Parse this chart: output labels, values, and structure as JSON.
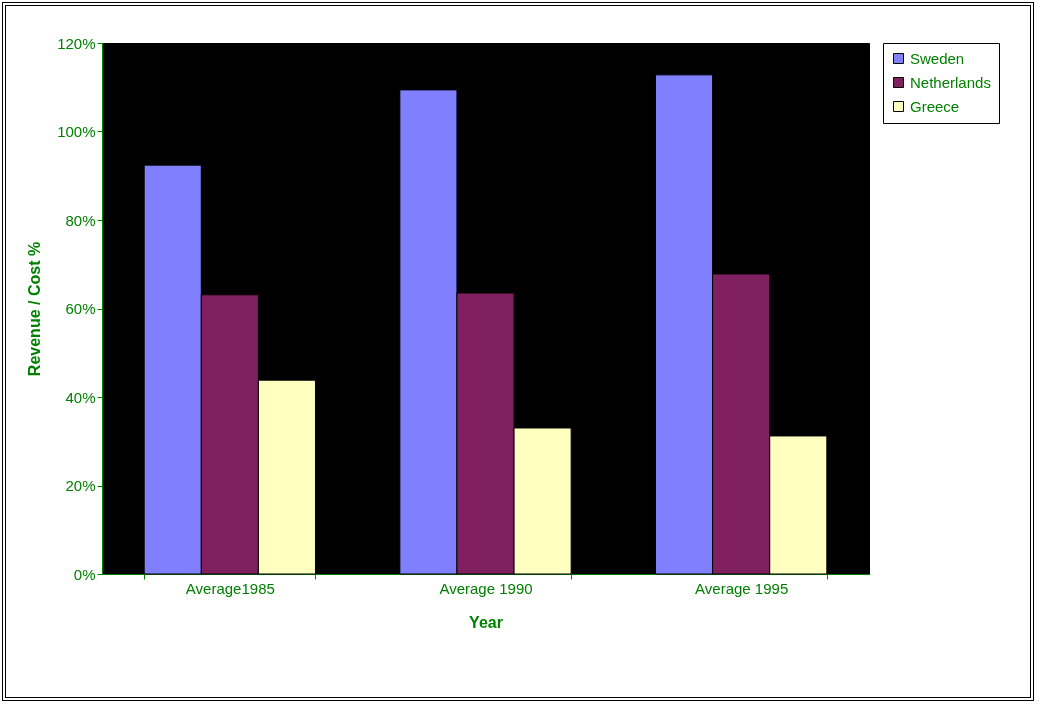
{
  "chart_data": {
    "type": "bar",
    "xlabel": "Year",
    "ylabel": "Revenue / Cost %",
    "categories": [
      "Average1985",
      "Average 1990",
      "Average 1995"
    ],
    "series": [
      {
        "name": "Sweden",
        "color": "#8080ff",
        "values": [
          92.4,
          109.4,
          112.8
        ]
      },
      {
        "name": "Netherlands",
        "color": "#802060",
        "values": [
          63.1,
          63.5,
          67.8
        ]
      },
      {
        "name": "Greece",
        "color": "#ffffc0",
        "values": [
          43.8,
          33.0,
          31.2
        ]
      }
    ],
    "ylim": [
      0,
      120
    ],
    "yticks": [
      {
        "value": 0,
        "label": "0%"
      },
      {
        "value": 20,
        "label": "20%"
      },
      {
        "value": 40,
        "label": "40%"
      },
      {
        "value": 60,
        "label": "60%"
      },
      {
        "value": 80,
        "label": "80%"
      },
      {
        "value": 100,
        "label": "100%"
      },
      {
        "value": 120,
        "label": "120%"
      }
    ],
    "grid": false,
    "legend": "right"
  }
}
